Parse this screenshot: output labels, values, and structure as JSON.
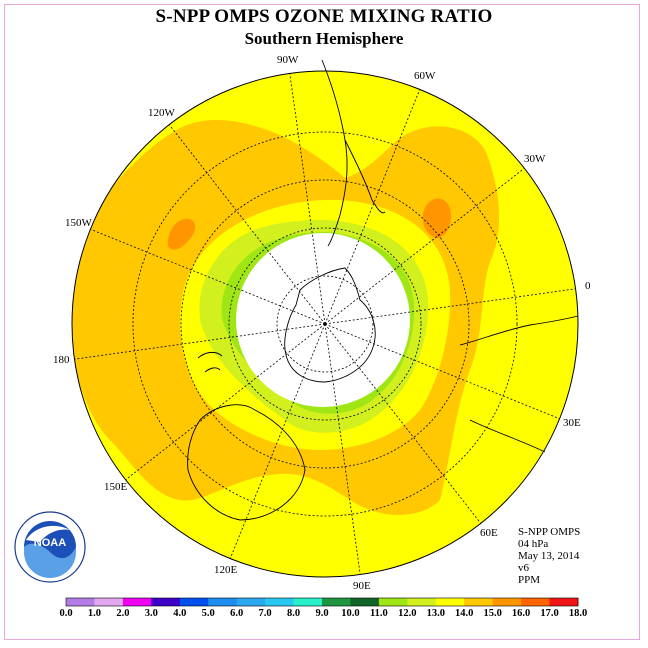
{
  "title": "S-NPP OMPS OZONE MIXING RATIO",
  "subtitle": "Southern Hemisphere",
  "longitude_labels": [
    "90W",
    "60W",
    "30W",
    "0",
    "30E",
    "60E",
    "90E",
    "120E",
    "150E",
    "180",
    "150W",
    "120W"
  ],
  "info": {
    "instrument": "S-NPP OMPS",
    "level": "04 hPa",
    "date": "May 13, 2014",
    "version": "v6",
    "units": "PPM"
  },
  "logo": {
    "text": "NOAA",
    "ring_text": "NATIONAL OCEANIC AND ATMOSPHERIC ADMINISTRATION · U.S. DEPARTMENT OF COMMERCE"
  },
  "colorbar": {
    "ticks": [
      "0.0",
      "1.0",
      "2.0",
      "3.0",
      "4.0",
      "5.0",
      "6.0",
      "7.0",
      "8.0",
      "9.0",
      "10.0",
      "11.0",
      "12.0",
      "13.0",
      "14.0",
      "15.0",
      "16.0",
      "17.0",
      "18.0"
    ],
    "colors": [
      "#b27de6",
      "#e2a8ef",
      "#f000f0",
      "#3c00c8",
      "#0050f0",
      "#1e8cf0",
      "#2aa8f0",
      "#28c8f0",
      "#28f0c8",
      "#1e9640",
      "#106428",
      "#a0e614",
      "#d2f01e",
      "#ffff00",
      "#ffc800",
      "#ff9600",
      "#ff6400",
      "#f01414",
      "#8c5032"
    ]
  },
  "map_colors": {
    "background": "#ffff00",
    "orange": "#ffc800",
    "dark_orange": "#ff9600",
    "yellow_green": "#d2f01e",
    "green": "#a0e614",
    "hole": "#ffffff"
  }
}
